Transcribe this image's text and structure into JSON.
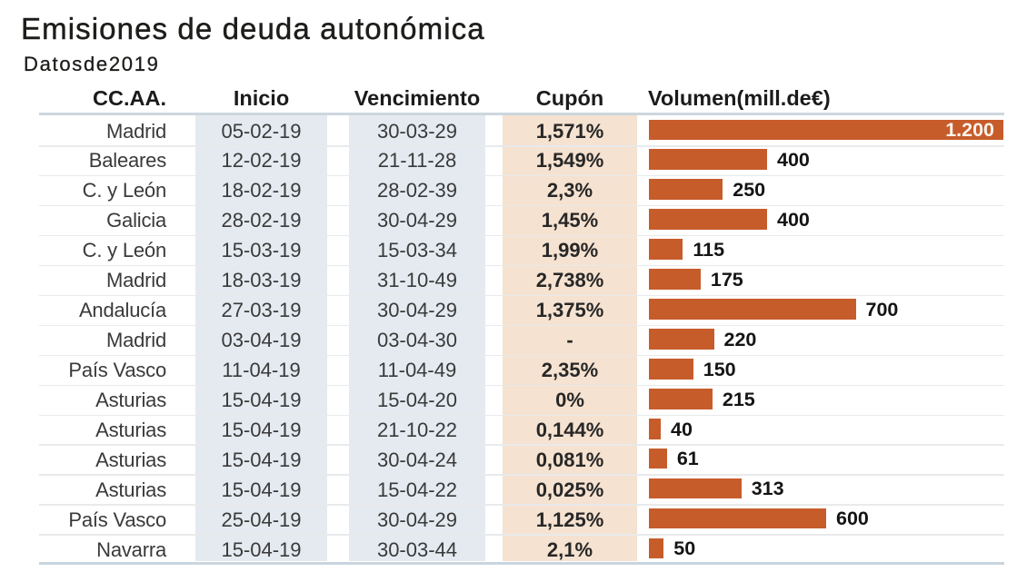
{
  "title": "Emisiones de deuda autonómica",
  "subtitle": "Datosde2019",
  "columns": {
    "region": "CC.AA.",
    "inicio": "Inicio",
    "vencimiento": "Vencimiento",
    "cupon": "Cupón",
    "volumen": "Volumen(mill.de€)"
  },
  "chart_data": {
    "type": "bar",
    "title": "Emisiones de deuda autonómica",
    "subtitle": "Datosde2019",
    "orientation": "horizontal",
    "xlim": [
      0,
      1200
    ],
    "bar_color": "#c75c2b",
    "value_unit": "mill. de €",
    "rows": [
      {
        "region": "Madrid",
        "inicio": "05-02-19",
        "vencimiento": "30-03-29",
        "cupon": "1,571%",
        "volumen": 1200,
        "volumen_label": "1.200",
        "label_position": "inside"
      },
      {
        "region": "Baleares",
        "inicio": "12-02-19",
        "vencimiento": "21-11-28",
        "cupon": "1,549%",
        "volumen": 400,
        "volumen_label": "400",
        "label_position": "outside"
      },
      {
        "region": "C. y León",
        "inicio": "18-02-19",
        "vencimiento": "28-02-39",
        "cupon": "2,3%",
        "volumen": 250,
        "volumen_label": "250",
        "label_position": "outside"
      },
      {
        "region": "Galicia",
        "inicio": "28-02-19",
        "vencimiento": "30-04-29",
        "cupon": "1,45%",
        "volumen": 400,
        "volumen_label": "400",
        "label_position": "outside"
      },
      {
        "region": "C. y León",
        "inicio": "15-03-19",
        "vencimiento": "15-03-34",
        "cupon": "1,99%",
        "volumen": 115,
        "volumen_label": "115",
        "label_position": "outside"
      },
      {
        "region": "Madrid",
        "inicio": "18-03-19",
        "vencimiento": "31-10-49",
        "cupon": "2,738%",
        "volumen": 175,
        "volumen_label": "175",
        "label_position": "outside"
      },
      {
        "region": "Andalucía",
        "inicio": "27-03-19",
        "vencimiento": "30-04-29",
        "cupon": "1,375%",
        "volumen": 700,
        "volumen_label": "700",
        "label_position": "outside"
      },
      {
        "region": "Madrid",
        "inicio": "03-04-19",
        "vencimiento": "03-04-30",
        "cupon": "-",
        "volumen": 220,
        "volumen_label": "220",
        "label_position": "outside"
      },
      {
        "region": "País Vasco",
        "inicio": "11-04-19",
        "vencimiento": "11-04-49",
        "cupon": "2,35%",
        "volumen": 150,
        "volumen_label": "150",
        "label_position": "outside"
      },
      {
        "region": "Asturias",
        "inicio": "15-04-19",
        "vencimiento": "15-04-20",
        "cupon": "0%",
        "volumen": 215,
        "volumen_label": "215",
        "label_position": "outside"
      },
      {
        "region": "Asturias",
        "inicio": "15-04-19",
        "vencimiento": "21-10-22",
        "cupon": "0,144%",
        "volumen": 40,
        "volumen_label": "40",
        "label_position": "outside"
      },
      {
        "region": "Asturias",
        "inicio": "15-04-19",
        "vencimiento": "30-04-24",
        "cupon": "0,081%",
        "volumen": 61,
        "volumen_label": "61",
        "label_position": "outside"
      },
      {
        "region": "Asturias",
        "inicio": "15-04-19",
        "vencimiento": "15-04-22",
        "cupon": "0,025%",
        "volumen": 313,
        "volumen_label": "313",
        "label_position": "outside"
      },
      {
        "region": "País Vasco",
        "inicio": "25-04-19",
        "vencimiento": "30-04-29",
        "cupon": "1,125%",
        "volumen": 600,
        "volumen_label": "600",
        "label_position": "outside"
      },
      {
        "region": "Navarra",
        "inicio": "15-04-19",
        "vencimiento": "30-03-44",
        "cupon": "2,1%",
        "volumen": 50,
        "volumen_label": "50",
        "label_position": "outside"
      }
    ]
  },
  "colors": {
    "bar": "#c75c2b",
    "band_blue": "#e4eaf0",
    "band_peach": "#f5e2d0",
    "rule_blue": "#ccd7df",
    "row_separator": "#e4e8ea",
    "text": "#3a3a3a",
    "title_text": "#1d1d1b",
    "inside_label_text": "#faf3ec"
  }
}
